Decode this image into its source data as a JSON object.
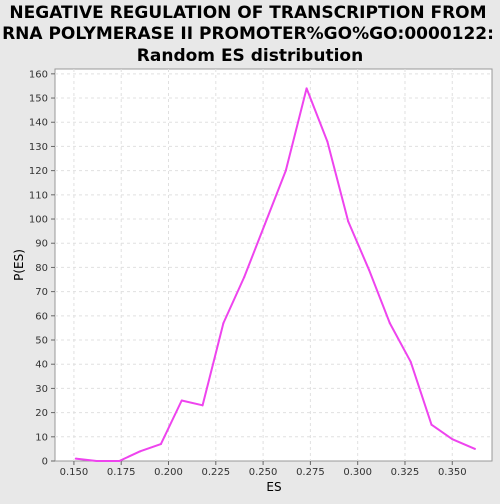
{
  "chart_data": {
    "type": "line",
    "title_lines": [
      "NEGATIVE REGULATION OF TRANSCRIPTION FROM",
      "RNA POLYMERASE II PROMOTER%GO%GO:0000122:",
      "Random ES distribution"
    ],
    "xlabel": "ES",
    "ylabel": "P(ES)",
    "xlim": [
      0.14,
      0.371
    ],
    "ylim": [
      0,
      162
    ],
    "xticks": [
      0.15,
      0.175,
      0.2,
      0.225,
      0.25,
      0.275,
      0.3,
      0.325,
      0.35
    ],
    "xtick_labels": [
      "0.150",
      "0.175",
      "0.200",
      "0.225",
      "0.250",
      "0.275",
      "0.300",
      "0.325",
      "0.350"
    ],
    "yticks": [
      0,
      10,
      20,
      30,
      40,
      50,
      60,
      70,
      80,
      90,
      100,
      110,
      120,
      130,
      140,
      150,
      160
    ],
    "grid": true,
    "series": [
      {
        "color": "#ee44ee",
        "x": [
          0.151,
          0.162,
          0.174,
          0.185,
          0.196,
          0.207,
          0.218,
          0.229,
          0.24,
          0.251,
          0.262,
          0.273,
          0.284,
          0.295,
          0.306,
          0.317,
          0.328,
          0.339,
          0.35,
          0.362
        ],
        "y": [
          1,
          0,
          0,
          4,
          7,
          25,
          23,
          57,
          76,
          98,
          120,
          154,
          132,
          99,
          79,
          57,
          41,
          15,
          9,
          5
        ]
      }
    ]
  }
}
